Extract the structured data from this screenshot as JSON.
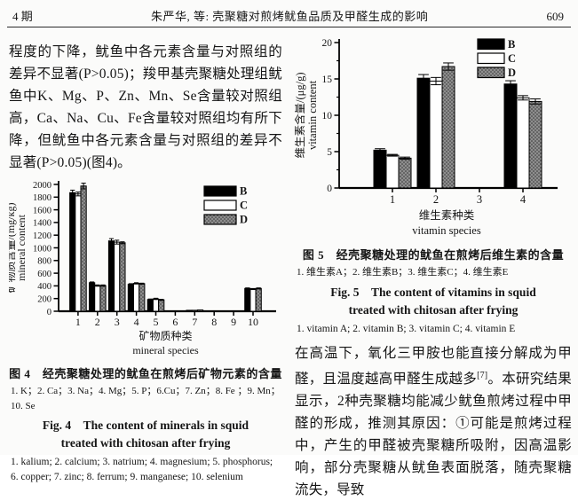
{
  "header": {
    "issue": "4 期",
    "running_title": "朱严华, 等: 壳聚糖对煎烤鱿鱼品质及甲醛生成的影响",
    "page_number": "609"
  },
  "left_column": {
    "paragraph": "程度的下降，鱿鱼中各元素含量与对照组的差异不显著(P>0.05)；羧甲基壳聚糖处理组鱿鱼中K、Mg、P、Zn、Mn、Se含量较对照组高，Ca、Na、Cu、Fe含量较对照组均有所下降，但鱿鱼中各元素含量与对照组的差异不显著(P>0.05)(图4)。",
    "fig4_caption": {
      "title_cn": "图 4　经壳聚糖处理的鱿鱼在煎烤后矿物元素的含量",
      "note_cn": "1. K；2. Ca；3. Na；4. Mg；5. P；6.Cu；7. Zn；8. Fe ；9. Mn；10. Se",
      "title_en": "Fig. 4　The content of minerals in squid treated with chitosan after frying",
      "note_en": "1. kalium; 2. calcium; 3. natrium; 4. magnesium; 5. phosphorus; 6. copper; 7. zinc; 8. ferrum; 9. manganese; 10. selenium"
    }
  },
  "right_column": {
    "fig5_caption": {
      "title_cn": "图 5　经壳聚糖处理的鱿鱼在煎烤后维生素的含量",
      "note_cn": "1. 维生素A；2. 维生素B；3. 维生素C；4. 维生素E",
      "title_en": "Fig. 5　The content of vitamins in squid treated with chitosan after frying",
      "note_en": "1. vitamin A; 2. vitamin B; 3. vitamin C; 4. vitamin E"
    },
    "paragraph": {
      "part1": "在高温下，氧化三甲胺也能直接分解成为甲醛，且温度越高甲醛生成越多",
      "ref": "[7]",
      "part2": "。本研究结果显示，2种壳聚糖均能减少鱿鱼煎烤过程中甲醛的形成，推测其原因：①可能是煎烤过程中，产生的甲醛被壳聚糖所吸附，因高温影响，部分壳聚糖从鱿鱼表面脱落，随壳聚糖流失，导致"
    }
  },
  "chart_data": [
    {
      "id": "fig4",
      "type": "bar",
      "title": "经壳聚糖处理的鱿鱼在煎烤后矿物元素的含量",
      "categories": [
        "1",
        "2",
        "3",
        "4",
        "5",
        "6",
        "7",
        "8",
        "9",
        "10"
      ],
      "series": [
        {
          "name": "B",
          "fill": "#000000",
          "values": [
            1870,
            450,
            1110,
            425,
            185,
            5,
            15,
            4,
            4,
            360
          ],
          "errors": [
            40,
            12,
            35,
            10,
            8,
            0,
            0,
            0,
            0,
            8
          ]
        },
        {
          "name": "C",
          "fill": "#ffffff",
          "values": [
            1850,
            405,
            1090,
            440,
            195,
            4,
            15,
            4,
            4,
            350
          ],
          "errors": [
            30,
            10,
            30,
            10,
            10,
            0,
            0,
            0,
            0,
            8
          ]
        },
        {
          "name": "D",
          "fill": "stipple",
          "values": [
            1975,
            405,
            1080,
            435,
            180,
            4,
            20,
            4,
            4,
            360
          ],
          "errors": [
            45,
            10,
            15,
            8,
            8,
            0,
            0,
            0,
            0,
            8
          ]
        }
      ],
      "ylim": [
        0,
        2000
      ],
      "ytick_step": 200,
      "ylabel_cn": "矿物质含量/(mg/kg)",
      "ylabel_en": "mineral content",
      "xlabel_cn": "矿物质种类",
      "xlabel_en": "mineral species",
      "legend_position": "top-right",
      "grid": false
    },
    {
      "id": "fig5",
      "type": "bar",
      "title": "经壳聚糖处理的鱿鱼在煎烤后维生素的含量",
      "categories": [
        "1",
        "2",
        "3",
        "4"
      ],
      "series": [
        {
          "name": "B",
          "fill": "#000000",
          "values": [
            5.2,
            15.1,
            0,
            14.3
          ],
          "errors": [
            0.2,
            0.5,
            0,
            0.45
          ]
        },
        {
          "name": "C",
          "fill": "#ffffff",
          "values": [
            4.5,
            14.7,
            0,
            12.4
          ],
          "errors": [
            0.12,
            0.5,
            0,
            0.3
          ]
        },
        {
          "name": "D",
          "fill": "stipple",
          "values": [
            4.1,
            16.7,
            0,
            11.9
          ],
          "errors": [
            0.15,
            0.5,
            0,
            0.35
          ]
        }
      ],
      "ylim": [
        0,
        20
      ],
      "ytick_step": 5,
      "yminor_step": 2.5,
      "ylabel_cn": "维生素含量/(μg/g)",
      "ylabel_en": "vitamin content",
      "xlabel_cn": "维生素种类",
      "xlabel_en": "vitamin species",
      "legend_position": "top-right",
      "grid": false
    }
  ]
}
